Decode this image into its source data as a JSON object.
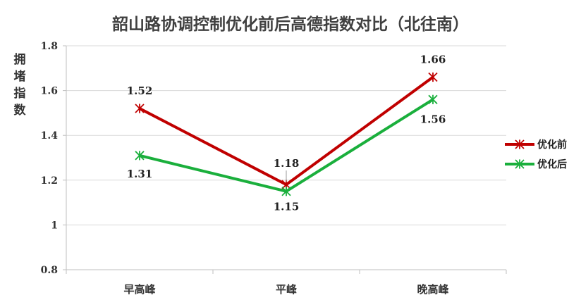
{
  "chart_data": {
    "type": "line",
    "title": "韶山路协调控制优化前后高德指数对比（北往南）",
    "xlabel": "",
    "ylabel": "拥堵指数",
    "categories": [
      "早高峰",
      "平峰",
      "晚高峰"
    ],
    "ylim": [
      0.8,
      1.8
    ],
    "yticks": [
      "0.8",
      "1",
      "1.2",
      "1.4",
      "1.6",
      "1.8"
    ],
    "grid": true,
    "legend_position": "right",
    "series": [
      {
        "name": "优化前",
        "color": "#c00000",
        "values": [
          1.52,
          1.18,
          1.66
        ],
        "labels": [
          "1.52",
          "1.18",
          "1.66"
        ]
      },
      {
        "name": "优化后",
        "color": "#1aaf3c",
        "values": [
          1.31,
          1.15,
          1.56
        ],
        "labels": [
          "1.31",
          "1.15",
          "1.56"
        ]
      }
    ]
  }
}
